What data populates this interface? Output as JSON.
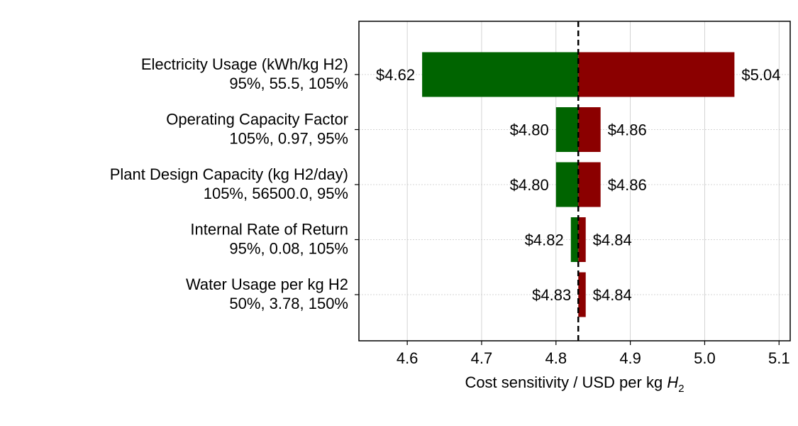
{
  "chart_data": {
    "type": "bar",
    "orientation": "horizontal",
    "subtype": "tornado",
    "title": "",
    "xlabel": "Cost sensitivity / USD per kg",
    "xlabel_symbol": "H",
    "xlabel_subscript": "2",
    "xlim": [
      4.535,
      5.115
    ],
    "xticks": [
      "4.6",
      "4.7",
      "4.8",
      "4.9",
      "5.0",
      "5.1"
    ],
    "xtick_values": [
      4.6,
      4.7,
      4.8,
      4.9,
      5.0,
      5.1
    ],
    "baseline": 4.83,
    "baseline_style": "dashed",
    "grid": true,
    "categories": [
      {
        "name": "Electricity Usage (kWh/kg H2)",
        "detail": "95%, 55.5, 105%",
        "low": 4.62,
        "high": 5.04,
        "low_label": "$4.62",
        "high_label": "$5.04"
      },
      {
        "name": "Operating Capacity Factor",
        "detail": "105%, 0.97, 95%",
        "low": 4.8,
        "high": 4.86,
        "low_label": "$4.80",
        "high_label": "$4.86"
      },
      {
        "name": "Plant Design Capacity (kg H2/day)",
        "detail": "105%, 56500.0, 95%",
        "low": 4.8,
        "high": 4.86,
        "low_label": "$4.80",
        "high_label": "$4.86"
      },
      {
        "name": "Internal Rate of Return",
        "detail": "95%, 0.08, 105%",
        "low": 4.82,
        "high": 4.84,
        "low_label": "$4.82",
        "high_label": "$4.84"
      },
      {
        "name": "Water Usage per kg H2",
        "detail": "50%, 3.78, 150%",
        "low": 4.83,
        "high": 4.84,
        "low_label": "$4.83",
        "high_label": "$4.84"
      }
    ],
    "colors": {
      "low": "#006400",
      "high": "#8b0000",
      "baseline": "#000000",
      "grid": "#c8c8c8"
    }
  }
}
